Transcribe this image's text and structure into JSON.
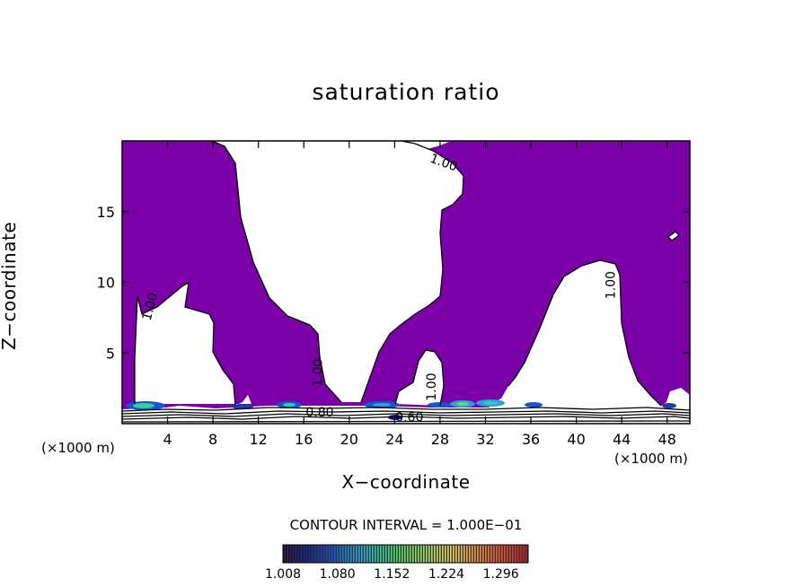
{
  "chart_data": {
    "type": "heatmap",
    "title": "saturation ratio",
    "xlabel": "X−coordinate",
    "ylabel": "Z−coordinate",
    "x_unit_label": "(×1000 m)",
    "xlim": [
      0,
      50
    ],
    "ylim": [
      0,
      20
    ],
    "x_ticks": [
      4,
      8,
      12,
      16,
      20,
      24,
      28,
      32,
      36,
      40,
      44,
      48
    ],
    "y_ticks": [
      5,
      10,
      15
    ],
    "x_tick_labels": [
      "4",
      "8",
      "12",
      "16",
      "20",
      "24",
      "28",
      "32",
      "36",
      "40",
      "44",
      "48"
    ],
    "y_tick_labels": [
      "5",
      "10",
      "15"
    ],
    "contour_interval_text": "CONTOUR INTERVAL = 1.000E−01",
    "contour_labels": [
      {
        "text": "1.00",
        "x": 2.8,
        "y": 8.2,
        "rotation": -75
      },
      {
        "text": "1.00",
        "x": 17.6,
        "y": 3.6,
        "rotation": -90
      },
      {
        "text": "1.00",
        "x": 27.6,
        "y": 2.6,
        "rotation": -90
      },
      {
        "text": "1.00",
        "x": 28.2,
        "y": 18.2,
        "rotation": 20
      },
      {
        "text": "1.00",
        "x": 43.4,
        "y": 9.8,
        "rotation": -90
      },
      {
        "text": "0.80",
        "x": 17.4,
        "y": 0.5,
        "rotation": 0
      },
      {
        "text": "0.60",
        "x": 25.3,
        "y": 0.15,
        "rotation": 0
      }
    ],
    "fill_color": "#7b00a8",
    "colorbar": {
      "min": 1.008,
      "max": 1.332,
      "tick_labels": [
        "1.008",
        "1.080",
        "1.152",
        "1.224",
        "1.296"
      ],
      "colors": [
        "#1a0040",
        "#0b1a8a",
        "#1456d0",
        "#2aa0e0",
        "#30d0a0",
        "#60e060",
        "#b0e070",
        "#e8d060",
        "#f09040",
        "#e85030",
        "#c02020"
      ]
    }
  }
}
